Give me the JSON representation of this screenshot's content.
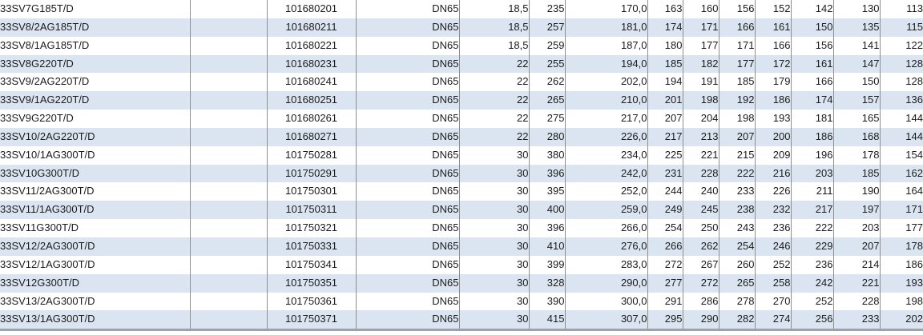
{
  "table": {
    "row_count": 18,
    "column_count": 14,
    "stripe_color": "#dbe5f1",
    "grid_line_color": "#8f8f8f",
    "bottom_border_color": "#9ba3ab",
    "text_color": "#1b1b1b",
    "rows": [
      [
        "33SV7G185T/D",
        "",
        "101680201",
        "DN65",
        "18,5",
        "235",
        "170,0",
        "163",
        "160",
        "156",
        "152",
        "142",
        "130",
        "113"
      ],
      [
        "33SV8/2AG185T/D",
        "",
        "101680211",
        "DN65",
        "18,5",
        "257",
        "181,0",
        "174",
        "171",
        "166",
        "161",
        "150",
        "135",
        "115"
      ],
      [
        "33SV8/1AG185T/D",
        "",
        "101680221",
        "DN65",
        "18,5",
        "259",
        "187,0",
        "180",
        "177",
        "171",
        "166",
        "156",
        "141",
        "122"
      ],
      [
        "33SV8G220T/D",
        "",
        "101680231",
        "DN65",
        "22",
        "255",
        "194,0",
        "185",
        "182",
        "177",
        "172",
        "161",
        "147",
        "128"
      ],
      [
        "33SV9/2AG220T/D",
        "",
        "101680241",
        "DN65",
        "22",
        "262",
        "202,0",
        "194",
        "191",
        "185",
        "179",
        "166",
        "150",
        "128"
      ],
      [
        "33SV9/1AG220T/D",
        "",
        "101680251",
        "DN65",
        "22",
        "265",
        "210,0",
        "201",
        "198",
        "192",
        "186",
        "174",
        "157",
        "136"
      ],
      [
        "33SV9G220T/D",
        "",
        "101680261",
        "DN65",
        "22",
        "275",
        "217,0",
        "207",
        "204",
        "198",
        "193",
        "181",
        "165",
        "144"
      ],
      [
        "33SV10/2AG220T/D",
        "",
        "101680271",
        "DN65",
        "22",
        "280",
        "226,0",
        "217",
        "213",
        "207",
        "200",
        "186",
        "168",
        "144"
      ],
      [
        "33SV10/1AG300T/D",
        "",
        "101750281",
        "DN65",
        "30",
        "380",
        "234,0",
        "225",
        "221",
        "215",
        "209",
        "196",
        "178",
        "154"
      ],
      [
        "33SV10G300T/D",
        "",
        "101750291",
        "DN65",
        "30",
        "396",
        "242,0",
        "231",
        "228",
        "222",
        "216",
        "203",
        "185",
        "162"
      ],
      [
        "33SV11/2AG300T/D",
        "",
        "101750301",
        "DN65",
        "30",
        "395",
        "252,0",
        "244",
        "240",
        "233",
        "226",
        "211",
        "190",
        "164"
      ],
      [
        "33SV11/1AG300T/D",
        "",
        "101750311",
        "DN65",
        "30",
        "400",
        "259,0",
        "249",
        "245",
        "238",
        "232",
        "217",
        "197",
        "171"
      ],
      [
        "33SV11G300T/D",
        "",
        "101750321",
        "DN65",
        "30",
        "396",
        "266,0",
        "254",
        "250",
        "243",
        "236",
        "222",
        "203",
        "177"
      ],
      [
        "33SV12/2AG300T/D",
        "",
        "101750331",
        "DN65",
        "30",
        "410",
        "276,0",
        "266",
        "262",
        "254",
        "246",
        "229",
        "207",
        "178"
      ],
      [
        "33SV12/1AG300T/D",
        "",
        "101750341",
        "DN65",
        "30",
        "399",
        "283,0",
        "272",
        "267",
        "260",
        "252",
        "236",
        "214",
        "186"
      ],
      [
        "33SV12G300T/D",
        "",
        "101750351",
        "DN65",
        "30",
        "328",
        "290,0",
        "277",
        "272",
        "265",
        "258",
        "242",
        "221",
        "193"
      ],
      [
        "33SV13/2AG300T/D",
        "",
        "101750361",
        "DN65",
        "30",
        "390",
        "300,0",
        "291",
        "286",
        "278",
        "270",
        "252",
        "228",
        "198"
      ],
      [
        "33SV13/1AG300T/D",
        "",
        "101750371",
        "DN65",
        "30",
        "415",
        "307,0",
        "295",
        "290",
        "282",
        "274",
        "256",
        "233",
        "202"
      ]
    ]
  }
}
